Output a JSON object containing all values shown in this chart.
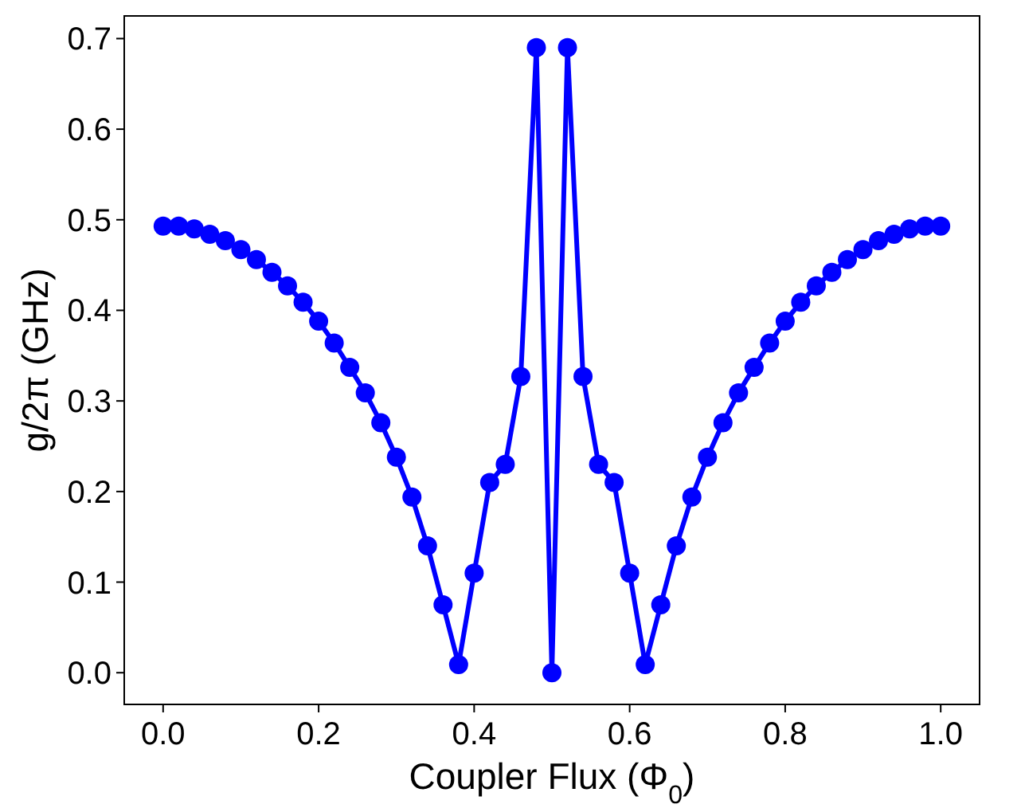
{
  "chart_data": {
    "type": "line",
    "xlabel": "Coupler Flux (Φ$_{0}$)",
    "ylabel": "g/2π (GHz)",
    "x": [
      0,
      0.02,
      0.04,
      0.06,
      0.08,
      0.1,
      0.12,
      0.14,
      0.16,
      0.18,
      0.2,
      0.22,
      0.24,
      0.26,
      0.28,
      0.3,
      0.32,
      0.34,
      0.36,
      0.38,
      0.4,
      0.42,
      0.44,
      0.46,
      0.48,
      0.5,
      0.52,
      0.54,
      0.56,
      0.58,
      0.6,
      0.62,
      0.64,
      0.66,
      0.68,
      0.7,
      0.72,
      0.74,
      0.76,
      0.78,
      0.8,
      0.82,
      0.84,
      0.86,
      0.88,
      0.9,
      0.92,
      0.94,
      0.96,
      0.98,
      1
    ],
    "series": [
      {
        "color": "#0000ff",
        "values": [
          0.493,
          0.493,
          0.49,
          0.484,
          0.477,
          0.467,
          0.456,
          0.442,
          0.427,
          0.409,
          0.388,
          0.364,
          0.337,
          0.309,
          0.276,
          0.238,
          0.194,
          0.14,
          0.075,
          0.009,
          0.11,
          0.21,
          0.23,
          0.327,
          0.69,
          0,
          0.69,
          0.327,
          0.23,
          0.21,
          0.11,
          0.009,
          0.075,
          0.14,
          0.194,
          0.238,
          0.276,
          0.309,
          0.337,
          0.364,
          0.388,
          0.409,
          0.427,
          0.442,
          0.456,
          0.467,
          0.477,
          0.484,
          0.49,
          0.493,
          0.493
        ]
      }
    ],
    "xlim": [
      -0.05,
      1.05
    ],
    "ylim": [
      -0.035,
      0.725
    ],
    "xticks": [
      {
        "value": 0,
        "label": "0.0"
      },
      0.2,
      0.4,
      0.6,
      0.8,
      {
        "value": 1,
        "label": "1.0"
      }
    ],
    "yticks": [
      {
        "value": 0,
        "label": "0.0"
      },
      0.1,
      0.2,
      0.3,
      0.4,
      0.5,
      0.6,
      0.7
    ],
    "grid": false,
    "marker": "circle",
    "line_style": "solid"
  }
}
